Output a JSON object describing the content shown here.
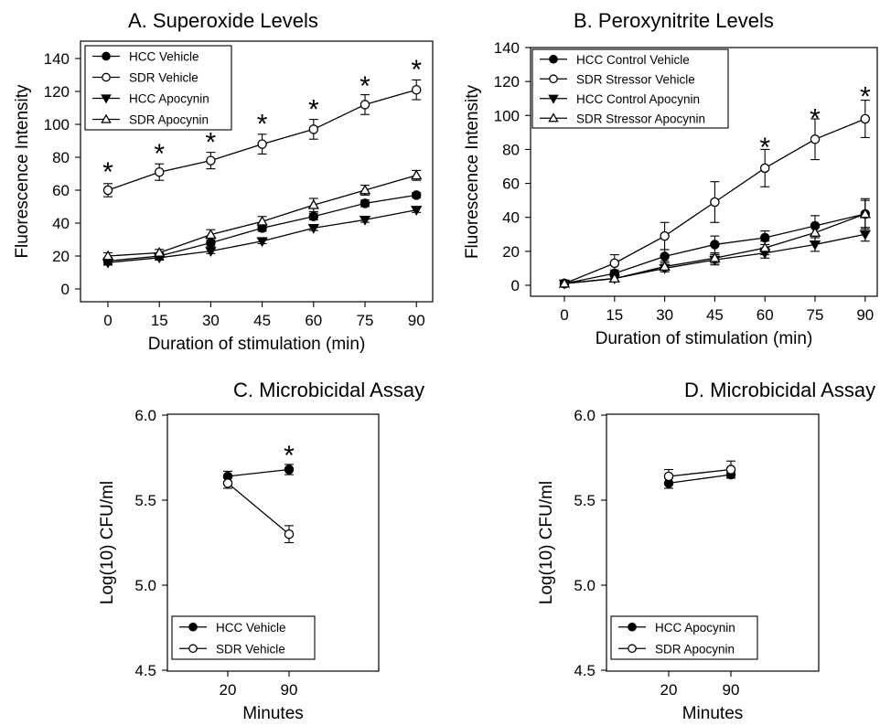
{
  "panels": [
    {
      "panel_title": "A. Superoxide Levels",
      "chart_data": {
        "type": "line",
        "title": "A. Superoxide Levels",
        "xlabel": "Duration of stimulation (min)",
        "ylabel": "Fluorescence Intensity",
        "x": [
          0,
          15,
          30,
          45,
          60,
          75,
          90
        ],
        "x_tick_labels": [
          "0",
          "15",
          "30",
          "45",
          "60",
          "75",
          "90"
        ],
        "ylim": [
          0,
          140
        ],
        "y_ticks": [
          0,
          20,
          40,
          60,
          80,
          100,
          120,
          140
        ],
        "legend_position": "top-left",
        "grid": false,
        "series": [
          {
            "name": "HCC Vehicle",
            "marker": "filled-circle",
            "values": [
              17,
              20,
              28,
              37,
              44,
              52,
              57
            ],
            "errors": [
              2,
              2,
              2,
              2,
              2,
              2,
              1.5
            ]
          },
          {
            "name": "SDR Vehicle",
            "marker": "open-circle",
            "values": [
              60,
              71,
              78,
              88,
              97,
              112,
              121
            ],
            "errors": [
              4,
              5,
              5,
              6,
              6,
              6,
              6
            ]
          },
          {
            "name": "HCC Apocynin",
            "marker": "filled-triangle-down",
            "values": [
              16,
              19,
              23,
              29,
              37,
              42,
              48
            ],
            "errors": [
              1.5,
              1.5,
              1.5,
              1.5,
              1.5,
              1.5,
              1.5
            ]
          },
          {
            "name": "SDR Apocynin",
            "marker": "open-triangle-up",
            "values": [
              20,
              22,
              33,
              41,
              51,
              60,
              69
            ],
            "errors": [
              2,
              2,
              3,
              3,
              4,
              3,
              3
            ]
          }
        ],
        "annotations": [
          {
            "text": "*",
            "x": 0,
            "y": 74
          },
          {
            "text": "*",
            "x": 15,
            "y": 85
          },
          {
            "text": "*",
            "x": 30,
            "y": 92
          },
          {
            "text": "*",
            "x": 45,
            "y": 103
          },
          {
            "text": "*",
            "x": 60,
            "y": 112
          },
          {
            "text": "*",
            "x": 75,
            "y": 126
          },
          {
            "text": "*",
            "x": 90,
            "y": 136
          }
        ]
      }
    },
    {
      "panel_title": "B. Peroxynitrite Levels",
      "chart_data": {
        "type": "line",
        "title": "B. Peroxynitrite Levels",
        "xlabel": "Duration of stimulation (min)",
        "ylabel": "Fluorescence Intensity",
        "x": [
          0,
          15,
          30,
          45,
          60,
          75,
          90
        ],
        "x_tick_labels": [
          "0",
          "15",
          "30",
          "45",
          "60",
          "75",
          "90"
        ],
        "ylim": [
          0,
          140
        ],
        "y_ticks": [
          0,
          20,
          40,
          60,
          80,
          100,
          120,
          140
        ],
        "legend_position": "top-left",
        "grid": false,
        "series": [
          {
            "name": "HCC Control Vehicle",
            "marker": "filled-circle",
            "values": [
              1,
              7,
              17,
              24,
              28,
              35,
              42
            ],
            "errors": [
              1,
              2,
              4,
              5,
              4,
              6,
              8
            ]
          },
          {
            "name": "SDR Stressor Vehicle",
            "marker": "open-circle",
            "values": [
              1,
              13,
              29,
              49,
              69,
              86,
              98
            ],
            "errors": [
              1,
              5,
              8,
              12,
              11,
              12,
              11
            ]
          },
          {
            "name": "HCC Control Apocynin",
            "marker": "filled-triangle-down",
            "values": [
              1,
              4,
              10,
              15,
              19,
              24,
              30
            ],
            "errors": [
              1,
              2,
              2,
              3,
              3,
              4,
              4
            ]
          },
          {
            "name": "SDR Stressor Apocynin",
            "marker": "open-triangle-up",
            "values": [
              1,
              4,
              11,
              16,
              22,
              31,
              42
            ],
            "errors": [
              1,
              2,
              3,
              3,
              4,
              5,
              9
            ]
          }
        ],
        "annotations": [
          {
            "text": "*",
            "x": 60,
            "y": 84
          },
          {
            "text": "*",
            "x": 75,
            "y": 101
          },
          {
            "text": "*",
            "x": 90,
            "y": 114
          }
        ]
      }
    },
    {
      "panel_title": "C. Microbicidal Assay",
      "chart_data": {
        "type": "line",
        "title": "C. Microbicidal Assay",
        "xlabel": "Minutes",
        "ylabel": "Log(10) CFU/ml",
        "categories": [
          "20",
          "90"
        ],
        "ylim": [
          4.5,
          6.0
        ],
        "y_tick_labels": [
          "4.5",
          "5.0",
          "5.5",
          "6.0"
        ],
        "legend_position": "bottom-left",
        "grid": false,
        "series": [
          {
            "name": "HCC Vehicle",
            "marker": "filled-circle",
            "values": [
              5.64,
              5.68
            ],
            "errors": [
              0.03,
              0.03
            ]
          },
          {
            "name": "SDR Vehicle",
            "marker": "open-circle",
            "values": [
              5.6,
              5.3
            ],
            "errors": [
              0.03,
              0.05
            ]
          }
        ],
        "annotations": [
          {
            "text": "*",
            "category": "90",
            "y": 5.79
          }
        ]
      }
    },
    {
      "panel_title": "D. Microbicidal Assay",
      "chart_data": {
        "type": "line",
        "title": "D. Microbicidal Assay",
        "xlabel": "Minutes",
        "ylabel": "Log(10) CFU/ml",
        "categories": [
          "20",
          "90"
        ],
        "ylim": [
          4.5,
          6.0
        ],
        "y_tick_labels": [
          "4.5",
          "5.0",
          "5.5",
          "6.0"
        ],
        "legend_position": "bottom-left",
        "grid": false,
        "series": [
          {
            "name": "HCC Apocynin",
            "marker": "filled-circle",
            "values": [
              5.6,
              5.65
            ],
            "errors": [
              0.03,
              0.02
            ]
          },
          {
            "name": "SDR Apocynin",
            "marker": "open-circle",
            "values": [
              5.64,
              5.68
            ],
            "errors": [
              0.04,
              0.05
            ]
          }
        ],
        "annotations": []
      }
    }
  ]
}
